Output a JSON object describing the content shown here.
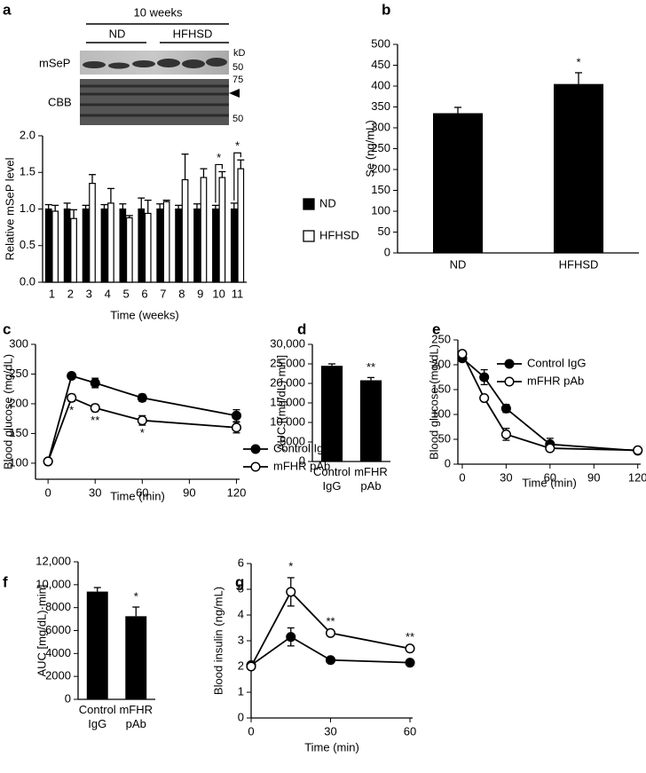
{
  "blot": {
    "title": "10 weeks",
    "groups": [
      "ND",
      "HFHSD"
    ],
    "unit": "kD",
    "rows": [
      {
        "name": "mSeP",
        "markers": [
          "50"
        ]
      },
      {
        "name": "CBB",
        "markers": [
          "75",
          "50"
        ]
      }
    ]
  },
  "chart_data": [
    {
      "panel": "a",
      "type": "bar",
      "categories": [
        "1",
        "2",
        "3",
        "4",
        "5",
        "6",
        "7",
        "8",
        "9",
        "10",
        "11"
      ],
      "series": [
        {
          "name": "ND",
          "color": "#000000",
          "values": [
            1.0,
            1.0,
            1.0,
            1.0,
            1.0,
            1.0,
            1.0,
            1.0,
            1.0,
            1.0,
            1.0
          ],
          "errors": [
            0.06,
            0.08,
            0.05,
            0.06,
            0.07,
            0.15,
            0.07,
            0.05,
            0.07,
            0.05,
            0.08
          ]
        },
        {
          "name": "HFHSD",
          "color": "#ffffff",
          "values": [
            0.97,
            0.87,
            1.35,
            1.08,
            0.88,
            0.94,
            1.1,
            1.4,
            1.43,
            1.43,
            1.55
          ],
          "errors": [
            0.08,
            0.12,
            0.12,
            0.2,
            0.03,
            0.18,
            0.02,
            0.35,
            0.12,
            0.08,
            0.12
          ]
        }
      ],
      "ylabel": "Relative mSeP level",
      "xlabel": "Time (weeks)",
      "ylim": [
        0,
        2
      ],
      "yticks": [
        {
          "value": 0,
          "label": "0.0"
        },
        0.5,
        {
          "value": 1,
          "label": "1.0"
        },
        1.5,
        {
          "value": 2,
          "label": "2.0"
        }
      ],
      "legend": "right",
      "annotations": [
        {
          "text": "*",
          "x": "10"
        },
        {
          "text": "*",
          "x": "11"
        }
      ]
    },
    {
      "panel": "b",
      "type": "bar",
      "categories": [
        "ND",
        "HFHSD"
      ],
      "values": [
        335,
        405
      ],
      "errors": [
        14,
        27
      ],
      "color": "#000000",
      "ylabel": "Se (ng/mL)",
      "ylim": [
        0,
        500
      ],
      "yticks": [
        0,
        50,
        100,
        150,
        200,
        250,
        300,
        350,
        400,
        450,
        500
      ],
      "annotations": [
        {
          "text": "*",
          "x": "HFHSD"
        }
      ]
    },
    {
      "panel": "c",
      "type": "line",
      "x": [
        0,
        15,
        30,
        60,
        120
      ],
      "series": [
        {
          "name": "Control IgG",
          "color": "#000000",
          "marker_fill": "#000000",
          "values": [
            103,
            247,
            235,
            210,
            180
          ],
          "errors": [
            null,
            5,
            8,
            6,
            10
          ]
        },
        {
          "name": "mFHR pAb",
          "color": "#000000",
          "marker_fill": "#ffffff",
          "values": [
            103,
            210,
            193,
            172,
            160
          ],
          "errors": [
            null,
            6,
            6,
            8,
            9
          ]
        }
      ],
      "xlabel": "Time (min)",
      "ylabel": "Blood glucose (mg/dL)",
      "xlim": [
        -8,
        122
      ],
      "xticks": [
        0,
        30,
        60,
        90,
        120
      ],
      "ylim": [
        73,
        300
      ],
      "yticks": [
        100,
        150,
        200,
        250,
        300
      ],
      "legend": "lower right",
      "annotations": [
        {
          "text": "*",
          "x": 15
        },
        {
          "text": "**",
          "x": 30
        },
        {
          "text": "*",
          "x": 60
        }
      ]
    },
    {
      "panel": "d",
      "type": "bar",
      "categories": [
        "Control IgG",
        "mFHR pAb"
      ],
      "values": [
        24500,
        20800
      ],
      "errors": [
        500,
        700
      ],
      "color": "#000000",
      "ylabel": "AUC [(mg/dL)·min]",
      "ylim": [
        0,
        30000
      ],
      "yticks": [
        0,
        5000,
        {
          "value": 10000,
          "label": "10,000"
        },
        {
          "value": 15000,
          "label": "15,000"
        },
        {
          "value": 20000,
          "label": "20,000"
        },
        {
          "value": 25000,
          "label": "25,000"
        },
        {
          "value": 30000,
          "label": "30,000"
        }
      ],
      "annotations": [
        {
          "text": "**",
          "x": "mFHR pAb"
        }
      ]
    },
    {
      "panel": "e",
      "type": "line",
      "x": [
        0,
        15,
        30,
        60,
        120
      ],
      "series": [
        {
          "name": "Control IgG",
          "color": "#000000",
          "marker_fill": "#000000",
          "values": [
            213,
            175,
            112,
            40,
            27
          ],
          "errors": [
            null,
            15,
            8,
            12,
            3
          ]
        },
        {
          "name": "mFHR pAb",
          "color": "#000000",
          "marker_fill": "#ffffff",
          "values": [
            222,
            133,
            60,
            32,
            28
          ],
          "errors": [
            null,
            null,
            12,
            null,
            null
          ]
        }
      ],
      "xlabel": "Time (min)",
      "ylabel": "Blood glucose (mg/dL)",
      "xlim": [
        -3,
        122
      ],
      "xticks": [
        0,
        30,
        60,
        90,
        120
      ],
      "ylim": [
        0,
        250
      ],
      "yticks": [
        0,
        50,
        100,
        150,
        200,
        250
      ],
      "legend": "upper right"
    },
    {
      "panel": "f",
      "type": "bar",
      "categories": [
        "Control IgG",
        "mFHR pAb"
      ],
      "values": [
        9400,
        7250
      ],
      "errors": [
        350,
        800
      ],
      "color": "#000000",
      "ylabel": "AUC [mg/dL)·min]",
      "ylim": [
        0,
        12000
      ],
      "yticks": [
        0,
        2000,
        4000,
        6000,
        8000,
        {
          "value": 10000,
          "label": "10,000"
        },
        {
          "value": 12000,
          "label": "12,000"
        }
      ],
      "annotations": [
        {
          "text": "*",
          "x": "mFHR pAb"
        }
      ]
    },
    {
      "panel": "g",
      "type": "line",
      "x": [
        0,
        15,
        30,
        60
      ],
      "series": [
        {
          "name": "Control IgG",
          "color": "#000000",
          "marker_fill": "#000000",
          "values": [
            2.05,
            3.15,
            2.25,
            2.15
          ],
          "errors": [
            null,
            0.35,
            null,
            null
          ]
        },
        {
          "name": "mFHR pAb",
          "color": "#000000",
          "marker_fill": "#ffffff",
          "values": [
            2.0,
            4.9,
            3.3,
            2.7
          ],
          "errors": [
            null,
            0.55,
            null,
            null
          ]
        }
      ],
      "xlabel": "Time (min)",
      "ylabel": "Blood insulin (ng/mL)",
      "xlim": [
        0,
        61
      ],
      "xticks": [
        0,
        30,
        60
      ],
      "ylim": [
        0,
        6
      ],
      "yticks": [
        0,
        1,
        2,
        3,
        4,
        5,
        6
      ],
      "annotations": [
        {
          "text": "*",
          "x": 15
        },
        {
          "text": "**",
          "x": 30
        },
        {
          "text": "**",
          "x": 60
        }
      ]
    }
  ]
}
